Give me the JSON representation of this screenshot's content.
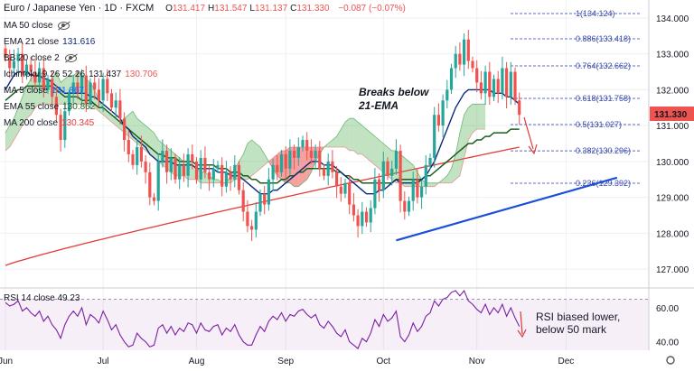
{
  "header": {
    "title": "Euro / Japanese Yen · 1D · FXCM",
    "ohlc": [
      {
        "k": "O",
        "v": "131.417"
      },
      {
        "k": "H",
        "v": "131.547"
      },
      {
        "k": "L",
        "v": "131.137"
      },
      {
        "k": "C",
        "v": "131.330"
      }
    ],
    "change": "−0.087 (−0.07%)"
  },
  "indicators": [
    {
      "label": "MA 50 close",
      "value": "",
      "hidden": true
    },
    {
      "label": "EMA 21 close",
      "value": "131.616",
      "color": "#0c2a7a"
    },
    {
      "label": "BB 20 close 2",
      "value": "",
      "hidden": true
    },
    {
      "label": "Ichimoku 9 26 52 26",
      "value": "131.437",
      "value2": "130.706"
    },
    {
      "label": "MA 5 close",
      "value": "131.867",
      "color": "#1e64ff"
    },
    {
      "label": "EMA 55 close",
      "value": "130.862",
      "color": "#1b5e20"
    },
    {
      "label": "MA 200 close",
      "value": "130.345",
      "color": "#e53935"
    }
  ],
  "price_tag": "131.330",
  "rsi": {
    "label": "RSI 14 close",
    "value": "49.23"
  },
  "colors": {
    "up": "#26a69a",
    "down": "#ef5350",
    "ema21": "#0c2a7a",
    "ema55": "#1b5e20",
    "ma200": "#e53935",
    "trend": "#1a4fd6",
    "rsi": "#7b1fa2",
    "cloud_bull": "#4caf50",
    "cloud_bear": "#ef5350"
  },
  "chart_data": {
    "type": "candlestick",
    "title": "Euro / Japanese Yen · 1D · FXCM",
    "ylim": [
      126.5,
      134.5
    ],
    "y_ticks": [
      127.0,
      128.0,
      129.0,
      130.0,
      131.0,
      132.0,
      133.0,
      134.0
    ],
    "x_labels": [
      {
        "label": "Jun",
        "i": 0
      },
      {
        "label": "Jul",
        "i": 23
      },
      {
        "label": "Aug",
        "i": 45
      },
      {
        "label": "Sep",
        "i": 66
      },
      {
        "label": "Oct",
        "i": 89
      },
      {
        "label": "Nov",
        "i": 111
      },
      {
        "label": "Dec",
        "i": 132
      }
    ],
    "closes": [
      132.9,
      132.6,
      132.8,
      133.0,
      132.4,
      132.7,
      132.5,
      132.2,
      132.6,
      132.0,
      132.3,
      131.8,
      131.3,
      130.6,
      131.4,
      131.9,
      132.2,
      131.9,
      132.4,
      131.6,
      132.2,
      132.0,
      131.7,
      132.3,
      131.9,
      131.5,
      131.7,
      131.2,
      130.6,
      130.2,
      129.9,
      130.4,
      130.0,
      129.7,
      129.0,
      128.9,
      130.0,
      130.3,
      129.7,
      130.1,
      129.5,
      129.9,
      129.6,
      130.2,
      130.0,
      129.5,
      130.1,
      129.7,
      129.5,
      129.8,
      129.9,
      129.3,
      129.7,
      129.5,
      129.9,
      129.2,
      128.6,
      128.2,
      128.1,
      128.6,
      129.1,
      128.8,
      129.5,
      129.9,
      129.7,
      130.2,
      129.8,
      130.3,
      130.1,
      130.4,
      130.6,
      130.3,
      130.1,
      130.3,
      129.8,
      129.6,
      130.0,
      129.7,
      129.3,
      129.1,
      129.4,
      128.8,
      128.5,
      128.2,
      128.6,
      128.3,
      128.7,
      129.5,
      129.2,
      130.0,
      129.6,
      129.8,
      130.3,
      128.9,
      128.6,
      128.9,
      129.5,
      129.0,
      129.3,
      129.9,
      130.1,
      131.3,
      131.0,
      131.7,
      132.0,
      132.6,
      133.0,
      132.7,
      133.4,
      132.8,
      132.6,
      132.2,
      131.9,
      132.5,
      131.8,
      132.3,
      131.9,
      132.6,
      131.8,
      132.5,
      131.7,
      131.3
    ],
    "ema21": [
      132.0,
      132.2,
      132.4,
      132.5,
      132.5,
      132.5,
      132.4,
      132.4,
      132.4,
      132.3,
      132.3,
      132.2,
      132.1,
      132.0,
      131.9,
      131.9,
      131.9,
      131.9,
      131.9,
      131.9,
      131.8,
      131.8,
      131.7,
      131.6,
      131.5,
      131.4,
      131.3,
      131.2,
      131.0,
      130.9,
      130.7,
      130.6,
      130.5,
      130.4,
      130.2,
      130.1,
      130.0,
      130.0,
      130.0,
      130.0,
      129.9,
      129.9,
      129.9,
      129.9,
      129.9,
      129.8,
      129.8,
      129.8,
      129.8,
      129.8,
      129.7,
      129.7,
      129.7,
      129.6,
      129.6,
      129.6,
      129.5,
      129.4,
      129.3,
      129.2,
      129.1,
      129.1,
      129.1,
      129.2,
      129.2,
      129.3,
      129.4,
      129.5,
      129.6,
      129.7,
      129.8,
      129.9,
      130.0,
      130.0,
      130.0,
      129.9,
      129.9,
      129.9,
      129.8,
      129.7,
      129.6,
      129.5,
      129.4,
      129.3,
      129.2,
      129.1,
      129.1,
      129.1,
      129.2,
      129.2,
      129.3,
      129.4,
      129.5,
      129.4,
      129.4,
      129.4,
      129.4,
      129.4,
      129.5,
      129.6,
      129.8,
      130.0,
      130.3,
      130.6,
      130.9,
      131.2,
      131.5,
      131.7,
      131.9,
      132.0,
      132.0,
      132.0,
      132.0,
      132.0,
      132.0,
      131.9,
      131.9,
      131.9,
      131.8,
      131.8,
      131.7,
      131.6
    ],
    "ema55": [
      131.7,
      131.8,
      131.9,
      132.0,
      132.0,
      132.1,
      132.1,
      132.1,
      132.1,
      132.1,
      132.1,
      132.1,
      132.0,
      131.9,
      131.8,
      131.8,
      131.8,
      131.8,
      131.7,
      131.7,
      131.7,
      131.6,
      131.5,
      131.5,
      131.4,
      131.3,
      131.2,
      131.1,
      131.0,
      130.9,
      130.8,
      130.7,
      130.6,
      130.5,
      130.4,
      130.3,
      130.2,
      130.2,
      130.1,
      130.1,
      130.1,
      130.0,
      130.0,
      130.0,
      130.0,
      129.9,
      129.9,
      129.9,
      129.9,
      129.9,
      129.8,
      129.8,
      129.8,
      129.7,
      129.7,
      129.7,
      129.6,
      129.6,
      129.5,
      129.5,
      129.4,
      129.4,
      129.4,
      129.4,
      129.4,
      129.5,
      129.5,
      129.6,
      129.6,
      129.7,
      129.7,
      129.8,
      129.8,
      129.8,
      129.8,
      129.8,
      129.8,
      129.8,
      129.7,
      129.7,
      129.6,
      129.6,
      129.5,
      129.5,
      129.4,
      129.4,
      129.4,
      129.4,
      129.4,
      129.4,
      129.4,
      129.4,
      129.5,
      129.5,
      129.5,
      129.5,
      129.5,
      129.5,
      129.5,
      129.6,
      129.6,
      129.7,
      129.8,
      129.9,
      130.0,
      130.1,
      130.2,
      130.3,
      130.4,
      130.5,
      130.5,
      130.6,
      130.6,
      130.7,
      130.7,
      130.8,
      130.8,
      130.8,
      130.8,
      130.9,
      130.9,
      130.9
    ],
    "ma200_start": 127.1,
    "ma200_end": 130.4,
    "cloud_offset": 26,
    "cloud_a": [
      130.8,
      131.0,
      131.2,
      131.5,
      131.8,
      132.1,
      132.3,
      132.4,
      132.5,
      132.4,
      132.2,
      132.3,
      132.5,
      132.2,
      132.3,
      132.4,
      132.4,
      132.5,
      132.4,
      132.3,
      132.2,
      132.0,
      131.7,
      131.5,
      131.4,
      131.3,
      131.2,
      131.1,
      131.2,
      131.3,
      131.4,
      131.2,
      131.1,
      131.0,
      130.9,
      130.8,
      130.6,
      130.5,
      130.4,
      130.3,
      130.2,
      130.1,
      130.0,
      130.0,
      129.9,
      129.8,
      129.7,
      129.7,
      129.6,
      129.5,
      129.5,
      129.4,
      129.4,
      129.6,
      129.8,
      130.0,
      130.2,
      130.5,
      130.6,
      130.5,
      130.4,
      130.2,
      130.0,
      129.8,
      129.6,
      129.5,
      129.4,
      129.4,
      129.3,
      129.3,
      129.4,
      129.5,
      129.7,
      130.0,
      130.2,
      130.4,
      130.5,
      130.6,
      130.7,
      130.9,
      131.1,
      131.2,
      131.2,
      131.1,
      131.0,
      130.9,
      130.8,
      130.7,
      130.6,
      130.5,
      130.4,
      130.3,
      130.3,
      130.2,
      130.1,
      130.0,
      129.9,
      129.7,
      129.5,
      129.4,
      129.4,
      129.4,
      129.4,
      129.5,
      129.6,
      129.8,
      130.2,
      130.8,
      131.3,
      131.5,
      131.6,
      131.6,
      131.6,
      131.6
    ],
    "cloud_b": [
      130.3,
      130.4,
      130.6,
      130.8,
      131.0,
      131.2,
      131.3,
      131.5,
      131.6,
      131.6,
      131.6,
      131.6,
      131.6,
      131.6,
      131.6,
      131.6,
      131.6,
      131.6,
      131.6,
      131.6,
      131.6,
      131.5,
      131.4,
      131.3,
      131.2,
      131.1,
      131.0,
      130.9,
      130.8,
      130.7,
      130.6,
      130.5,
      130.4,
      130.3,
      130.2,
      130.1,
      130.0,
      129.9,
      129.8,
      129.7,
      129.6,
      129.6,
      129.6,
      129.5,
      129.5,
      129.5,
      129.4,
      129.4,
      129.4,
      129.4,
      129.4,
      129.4,
      129.4,
      129.4,
      129.5,
      129.5,
      129.5,
      129.5,
      129.6,
      129.7,
      129.8,
      129.9,
      130.0,
      130.1,
      130.2,
      130.3,
      130.3,
      130.4,
      130.4,
      130.4,
      130.4,
      130.4,
      130.4,
      130.4,
      130.4,
      130.4,
      130.4,
      130.4,
      130.4,
      130.4,
      130.4,
      130.3,
      130.3,
      130.2,
      130.2,
      130.1,
      130.0,
      129.9,
      129.8,
      129.7,
      129.6,
      129.5,
      129.4,
      129.4,
      129.3,
      129.3,
      129.3,
      129.3,
      129.3,
      129.3,
      129.3,
      129.3,
      129.4,
      129.4,
      129.4,
      129.4,
      129.5,
      129.6,
      130.1,
      130.6,
      130.8,
      130.9,
      130.9,
      130.9
    ],
    "fib_levels": [
      {
        "ratio": "1",
        "price": 134.124,
        "label": "1(134.124)"
      },
      {
        "ratio": "0.886",
        "price": 133.418,
        "label": "0.886(133.418)"
      },
      {
        "ratio": "0.764",
        "price": 132.662,
        "label": "0.764(132.662)"
      },
      {
        "ratio": "0.618",
        "price": 131.758,
        "label": "0.618(131.758)"
      },
      {
        "ratio": "0.5",
        "price": 131.027,
        "label": "0.5(131.027)"
      },
      {
        "ratio": "0.382",
        "price": 130.296,
        "label": "0.382(130.296)"
      },
      {
        "ratio": "0.236",
        "price": 129.392,
        "label": "0.236(129.392)"
      }
    ],
    "trendline": {
      "i0": 92,
      "p0": 127.8,
      "i1": 144,
      "p1": 129.55
    },
    "annotations": [
      {
        "text": [
          "Breaks below",
          "21-EMA"
        ],
        "i": 96,
        "p": 131.95
      },
      {
        "text": [
          "RSI biased lower,",
          "below 50 mark"
        ],
        "i": 141,
        "pane": "rsi"
      }
    ],
    "rsi": {
      "ylim": [
        35,
        70
      ],
      "y_ticks": [
        40.0,
        60.0
      ],
      "band": [
        30,
        70
      ],
      "values": [
        63,
        61,
        62,
        64,
        58,
        60,
        57,
        55,
        58,
        52,
        55,
        50,
        47,
        42,
        50,
        55,
        58,
        55,
        60,
        50,
        56,
        54,
        51,
        58,
        53,
        47,
        50,
        44,
        40,
        37,
        38,
        45,
        42,
        40,
        37,
        38,
        48,
        50,
        45,
        49,
        44,
        48,
        46,
        51,
        50,
        45,
        51,
        47,
        46,
        49,
        50,
        44,
        48,
        46,
        50,
        44,
        40,
        38,
        38,
        44,
        49,
        46,
        52,
        55,
        53,
        57,
        52,
        56,
        55,
        58,
        59,
        56,
        54,
        56,
        50,
        48,
        52,
        49,
        45,
        43,
        47,
        40,
        38,
        36,
        42,
        40,
        45,
        53,
        49,
        56,
        52,
        54,
        58,
        43,
        40,
        44,
        51,
        46,
        49,
        55,
        57,
        64,
        61,
        65,
        66,
        69,
        70,
        67,
        70,
        64,
        62,
        59,
        57,
        62,
        56,
        60,
        57,
        62,
        55,
        60,
        54,
        49
      ]
    }
  }
}
